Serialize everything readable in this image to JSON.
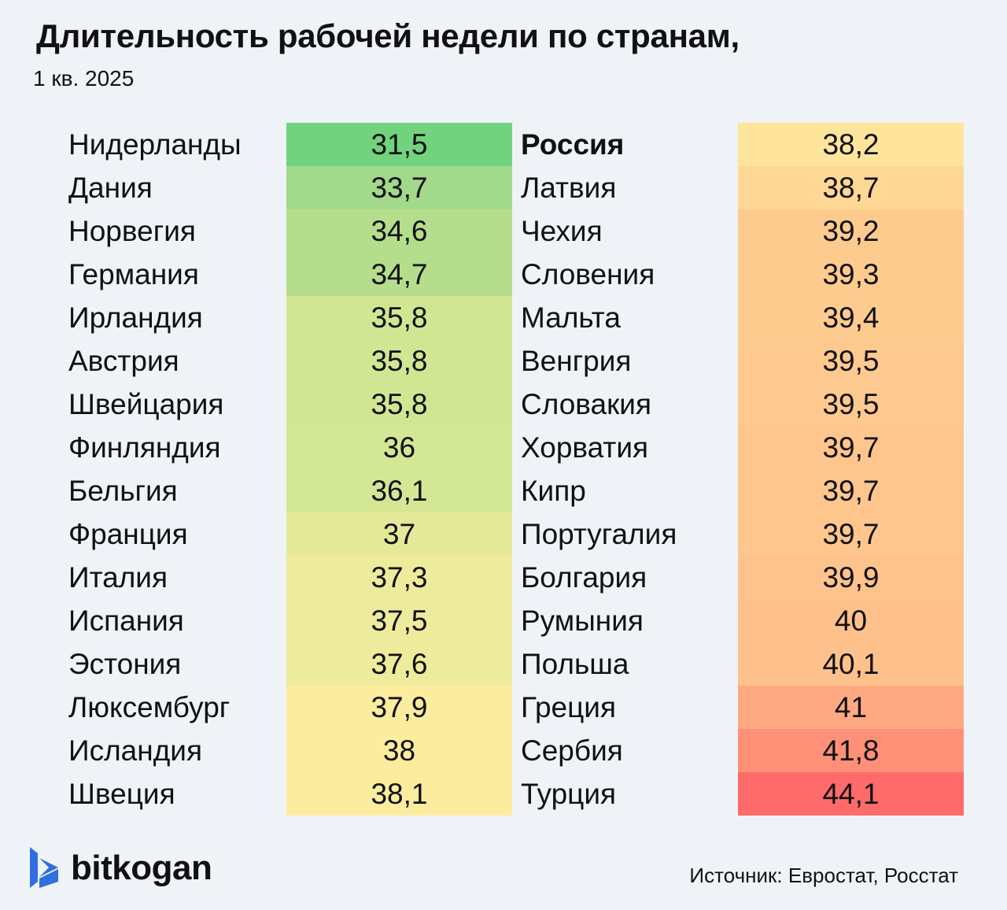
{
  "title": "Длительность рабочей недели по странам,",
  "subtitle": "1 кв. 2025",
  "source": "Источник: Евростат, Росстат",
  "brand": "bitkogan",
  "chart_data": {
    "type": "table",
    "title": "Длительность рабочей недели по странам,",
    "subtitle": "1 кв. 2025",
    "highlight": "Россия",
    "columns": [
      [
        {
          "country": "Нидерланды",
          "value": "31,5",
          "color": "#72d37f"
        },
        {
          "country": "Дания",
          "value": "33,7",
          "color": "#a2d98a"
        },
        {
          "country": "Норвегия",
          "value": "34,6",
          "color": "#b5de8c"
        },
        {
          "country": "Германия",
          "value": "34,7",
          "color": "#b5de8c"
        },
        {
          "country": "Ирландия",
          "value": "35,8",
          "color": "#d1e693"
        },
        {
          "country": "Австрия",
          "value": "35,8",
          "color": "#d1e693"
        },
        {
          "country": "Швейцария",
          "value": "35,8",
          "color": "#d1e693"
        },
        {
          "country": "Финляндия",
          "value": "36",
          "color": "#d4e794"
        },
        {
          "country": "Бельгия",
          "value": "36,1",
          "color": "#d4e794"
        },
        {
          "country": "Франция",
          "value": "37",
          "color": "#e4e999"
        },
        {
          "country": "Италия",
          "value": "37,3",
          "color": "#eeeb9c"
        },
        {
          "country": "Испания",
          "value": "37,5",
          "color": "#eeeb9c"
        },
        {
          "country": "Эстония",
          "value": "37,6",
          "color": "#eeeb9c"
        },
        {
          "country": "Люксембург",
          "value": "37,9",
          "color": "#fcec9e"
        },
        {
          "country": "Исландия",
          "value": "38",
          "color": "#fcec9e"
        },
        {
          "country": "Швеция",
          "value": "38,1",
          "color": "#fcec9e"
        }
      ],
      [
        {
          "country": "Россия",
          "value": "38,2",
          "color": "#ffe59b"
        },
        {
          "country": "Латвия",
          "value": "38,7",
          "color": "#fed894"
        },
        {
          "country": "Чехия",
          "value": "39,2",
          "color": "#fecb8f"
        },
        {
          "country": "Словения",
          "value": "39,3",
          "color": "#fecb8f"
        },
        {
          "country": "Мальта",
          "value": "39,4",
          "color": "#fecb8f"
        },
        {
          "country": "Венгрия",
          "value": "39,5",
          "color": "#fec98e"
        },
        {
          "country": "Словакия",
          "value": "39,5",
          "color": "#fec98e"
        },
        {
          "country": "Хорватия",
          "value": "39,7",
          "color": "#fec68d"
        },
        {
          "country": "Кипр",
          "value": "39,7",
          "color": "#fec68d"
        },
        {
          "country": "Португалия",
          "value": "39,7",
          "color": "#fec68d"
        },
        {
          "country": "Болгария",
          "value": "39,9",
          "color": "#fec38c"
        },
        {
          "country": "Румыния",
          "value": "40",
          "color": "#fec18b"
        },
        {
          "country": "Польша",
          "value": "40,1",
          "color": "#fec18b"
        },
        {
          "country": "Греция",
          "value": "41",
          "color": "#ffa982"
        },
        {
          "country": "Сербия",
          "value": "41,8",
          "color": "#ff9078"
        },
        {
          "country": "Турция",
          "value": "44,1",
          "color": "#ff6a6a"
        }
      ]
    ]
  },
  "colors": {
    "background": "#eff3f7",
    "logo_blue": "#2f6fde"
  }
}
